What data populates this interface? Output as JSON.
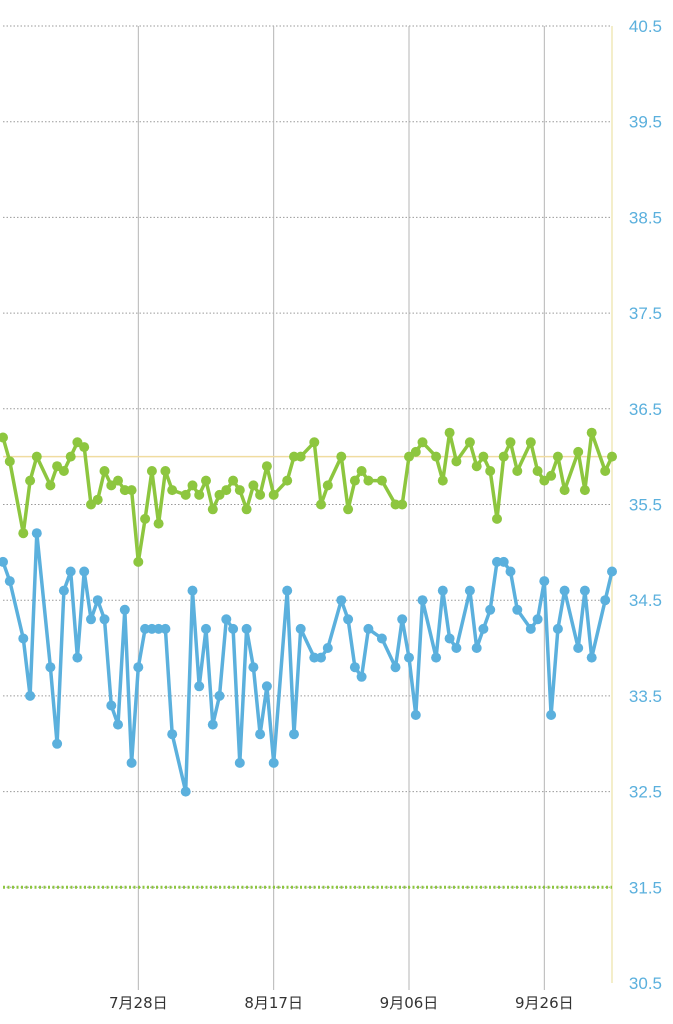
{
  "chart_data": {
    "type": "line",
    "ylim": [
      30.5,
      40.5
    ],
    "yticks": [
      "40.5",
      "39.5",
      "38.5",
      "37.5",
      "36.5",
      "35.5",
      "34.5",
      "33.5",
      "32.5",
      "31.5",
      "30.5"
    ],
    "xlim": [
      "2025-07-08",
      "2025-10-06"
    ],
    "xticks": [
      {
        "date": "2025-07-28",
        "label": "7月28日"
      },
      {
        "date": "2025-08-17",
        "label": "8月17日"
      },
      {
        "date": "2025-09-06",
        "label": "9月06日"
      },
      {
        "date": "2025-09-26",
        "label": "9月26日"
      }
    ],
    "grid": true,
    "reference_lines": [
      {
        "y": 36.0,
        "style": "solid",
        "color": "#f0dca0"
      },
      {
        "y": 31.5,
        "style": "dotted",
        "color": "#8dc63f"
      }
    ],
    "series": [
      {
        "color": "#8dc63f",
        "points": [
          [
            "2025-07-08",
            36.2
          ],
          [
            "2025-07-09",
            35.95
          ],
          [
            "2025-07-11",
            35.2
          ],
          [
            "2025-07-12",
            35.75
          ],
          [
            "2025-07-13",
            36.0
          ],
          [
            "2025-07-15",
            35.7
          ],
          [
            "2025-07-16",
            35.9
          ],
          [
            "2025-07-17",
            35.85
          ],
          [
            "2025-07-18",
            36.0
          ],
          [
            "2025-07-19",
            36.15
          ],
          [
            "2025-07-20",
            36.1
          ],
          [
            "2025-07-21",
            35.5
          ],
          [
            "2025-07-22",
            35.55
          ],
          [
            "2025-07-23",
            35.85
          ],
          [
            "2025-07-24",
            35.7
          ],
          [
            "2025-07-25",
            35.75
          ],
          [
            "2025-07-26",
            35.65
          ],
          [
            "2025-07-27",
            35.65
          ],
          [
            "2025-07-28",
            34.9
          ],
          [
            "2025-07-29",
            35.35
          ],
          [
            "2025-07-30",
            35.85
          ],
          [
            "2025-07-31",
            35.3
          ],
          [
            "2025-08-01",
            35.85
          ],
          [
            "2025-08-02",
            35.65
          ],
          [
            "2025-08-04",
            35.6
          ],
          [
            "2025-08-05",
            35.7
          ],
          [
            "2025-08-06",
            35.6
          ],
          [
            "2025-08-07",
            35.75
          ],
          [
            "2025-08-08",
            35.45
          ],
          [
            "2025-08-09",
            35.6
          ],
          [
            "2025-08-10",
            35.65
          ],
          [
            "2025-08-11",
            35.75
          ],
          [
            "2025-08-12",
            35.65
          ],
          [
            "2025-08-13",
            35.45
          ],
          [
            "2025-08-14",
            35.7
          ],
          [
            "2025-08-15",
            35.6
          ],
          [
            "2025-08-16",
            35.9
          ],
          [
            "2025-08-17",
            35.6
          ],
          [
            "2025-08-19",
            35.75
          ],
          [
            "2025-08-20",
            36.0
          ],
          [
            "2025-08-21",
            36.0
          ],
          [
            "2025-08-23",
            36.15
          ],
          [
            "2025-08-24",
            35.5
          ],
          [
            "2025-08-25",
            35.7
          ],
          [
            "2025-08-27",
            36.0
          ],
          [
            "2025-08-28",
            35.45
          ],
          [
            "2025-08-29",
            35.75
          ],
          [
            "2025-08-30",
            35.85
          ],
          [
            "2025-08-31",
            35.75
          ],
          [
            "2025-09-02",
            35.75
          ],
          [
            "2025-09-04",
            35.5
          ],
          [
            "2025-09-05",
            35.5
          ],
          [
            "2025-09-06",
            36.0
          ],
          [
            "2025-09-07",
            36.05
          ],
          [
            "2025-09-08",
            36.15
          ],
          [
            "2025-09-10",
            36.0
          ],
          [
            "2025-09-11",
            35.75
          ],
          [
            "2025-09-12",
            36.25
          ],
          [
            "2025-09-13",
            35.95
          ],
          [
            "2025-09-15",
            36.15
          ],
          [
            "2025-09-16",
            35.9
          ],
          [
            "2025-09-17",
            36.0
          ],
          [
            "2025-09-18",
            35.85
          ],
          [
            "2025-09-19",
            35.35
          ],
          [
            "2025-09-20",
            36.0
          ],
          [
            "2025-09-21",
            36.15
          ],
          [
            "2025-09-22",
            35.85
          ],
          [
            "2025-09-24",
            36.15
          ],
          [
            "2025-09-25",
            35.85
          ],
          [
            "2025-09-26",
            35.75
          ],
          [
            "2025-09-27",
            35.8
          ],
          [
            "2025-09-28",
            36.0
          ],
          [
            "2025-09-29",
            35.65
          ],
          [
            "2025-10-01",
            36.05
          ],
          [
            "2025-10-02",
            35.65
          ],
          [
            "2025-10-03",
            36.25
          ],
          [
            "2025-10-05",
            35.85
          ],
          [
            "2025-10-06",
            36.0
          ]
        ]
      },
      {
        "color": "#5bb0dd",
        "points": [
          [
            "2025-07-08",
            34.9
          ],
          [
            "2025-07-09",
            34.7
          ],
          [
            "2025-07-11",
            34.1
          ],
          [
            "2025-07-12",
            33.5
          ],
          [
            "2025-07-13",
            35.2
          ],
          [
            "2025-07-15",
            33.8
          ],
          [
            "2025-07-16",
            33.0
          ],
          [
            "2025-07-17",
            34.6
          ],
          [
            "2025-07-18",
            34.8
          ],
          [
            "2025-07-19",
            33.9
          ],
          [
            "2025-07-20",
            34.8
          ],
          [
            "2025-07-21",
            34.3
          ],
          [
            "2025-07-22",
            34.5
          ],
          [
            "2025-07-23",
            34.3
          ],
          [
            "2025-07-24",
            33.4
          ],
          [
            "2025-07-25",
            33.2
          ],
          [
            "2025-07-26",
            34.4
          ],
          [
            "2025-07-27",
            32.8
          ],
          [
            "2025-07-28",
            33.8
          ],
          [
            "2025-07-29",
            34.2
          ],
          [
            "2025-07-30",
            34.2
          ],
          [
            "2025-07-31",
            34.2
          ],
          [
            "2025-08-01",
            34.2
          ],
          [
            "2025-08-02",
            33.1
          ],
          [
            "2025-08-04",
            32.5
          ],
          [
            "2025-08-05",
            34.6
          ],
          [
            "2025-08-06",
            33.6
          ],
          [
            "2025-08-07",
            34.2
          ],
          [
            "2025-08-08",
            33.2
          ],
          [
            "2025-08-09",
            33.5
          ],
          [
            "2025-08-10",
            34.3
          ],
          [
            "2025-08-11",
            34.2
          ],
          [
            "2025-08-12",
            32.8
          ],
          [
            "2025-08-13",
            34.2
          ],
          [
            "2025-08-14",
            33.8
          ],
          [
            "2025-08-15",
            33.1
          ],
          [
            "2025-08-16",
            33.6
          ],
          [
            "2025-08-17",
            32.8
          ],
          [
            "2025-08-19",
            34.6
          ],
          [
            "2025-08-20",
            33.1
          ],
          [
            "2025-08-21",
            34.2
          ],
          [
            "2025-08-23",
            33.9
          ],
          [
            "2025-08-24",
            33.9
          ],
          [
            "2025-08-25",
            34.0
          ],
          [
            "2025-08-27",
            34.5
          ],
          [
            "2025-08-28",
            34.3
          ],
          [
            "2025-08-29",
            33.8
          ],
          [
            "2025-08-30",
            33.7
          ],
          [
            "2025-08-31",
            34.2
          ],
          [
            "2025-09-02",
            34.1
          ],
          [
            "2025-09-04",
            33.8
          ],
          [
            "2025-09-05",
            34.3
          ],
          [
            "2025-09-06",
            33.9
          ],
          [
            "2025-09-07",
            33.3
          ],
          [
            "2025-09-08",
            34.5
          ],
          [
            "2025-09-10",
            33.9
          ],
          [
            "2025-09-11",
            34.6
          ],
          [
            "2025-09-12",
            34.1
          ],
          [
            "2025-09-13",
            34.0
          ],
          [
            "2025-09-15",
            34.6
          ],
          [
            "2025-09-16",
            34.0
          ],
          [
            "2025-09-17",
            34.2
          ],
          [
            "2025-09-18",
            34.4
          ],
          [
            "2025-09-19",
            34.9
          ],
          [
            "2025-09-20",
            34.9
          ],
          [
            "2025-09-21",
            34.8
          ],
          [
            "2025-09-22",
            34.4
          ],
          [
            "2025-09-24",
            34.2
          ],
          [
            "2025-09-25",
            34.3
          ],
          [
            "2025-09-26",
            34.7
          ],
          [
            "2025-09-27",
            33.3
          ],
          [
            "2025-09-28",
            34.2
          ],
          [
            "2025-09-29",
            34.6
          ],
          [
            "2025-10-01",
            34.0
          ],
          [
            "2025-10-02",
            34.6
          ],
          [
            "2025-10-03",
            33.9
          ],
          [
            "2025-10-05",
            34.5
          ],
          [
            "2025-10-06",
            34.8
          ]
        ]
      }
    ]
  }
}
